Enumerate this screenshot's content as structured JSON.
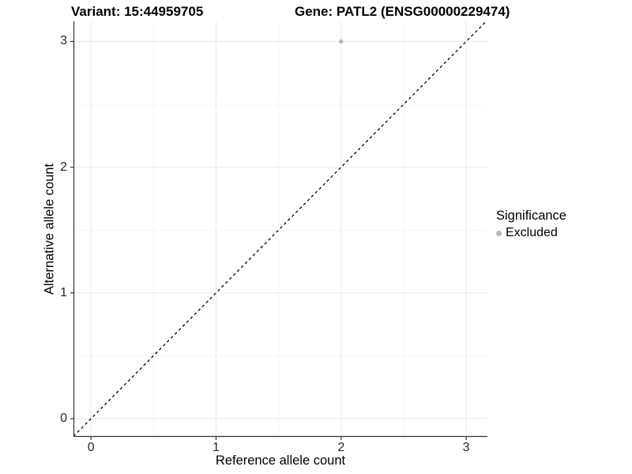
{
  "header": {
    "variant_title": "Variant: 15:44959705",
    "gene_title": "Gene: PATL2 (ENSG00000229474)"
  },
  "chart_data": {
    "type": "scatter",
    "xlabel": "Reference allele count",
    "ylabel": "Alternative allele count",
    "xlim": [
      -0.14,
      3.17
    ],
    "ylim": [
      -0.145,
      3.16
    ],
    "xticks": [
      0,
      1,
      2,
      3
    ],
    "yticks": [
      0,
      1,
      2,
      3
    ],
    "minor_ticks": [
      0.5,
      1.5,
      2.5
    ],
    "grid": "major+minor on white background",
    "points": [
      {
        "x": 2,
        "y": 3,
        "significance": "Excluded"
      }
    ],
    "reference_line": {
      "type": "identity",
      "slope": 1,
      "intercept": 0,
      "style": "dashed",
      "color": "#000000"
    },
    "legend": {
      "title": "Significance",
      "position": "right",
      "items": [
        {
          "label": "Excluded",
          "color": "#b5b5b5"
        }
      ]
    },
    "colors": {
      "point": "#b5b5b5",
      "grid_major": "#e8e8e8",
      "grid_minor": "#f4f4f4",
      "axis": "#333333",
      "tick_text": "#262626"
    }
  }
}
